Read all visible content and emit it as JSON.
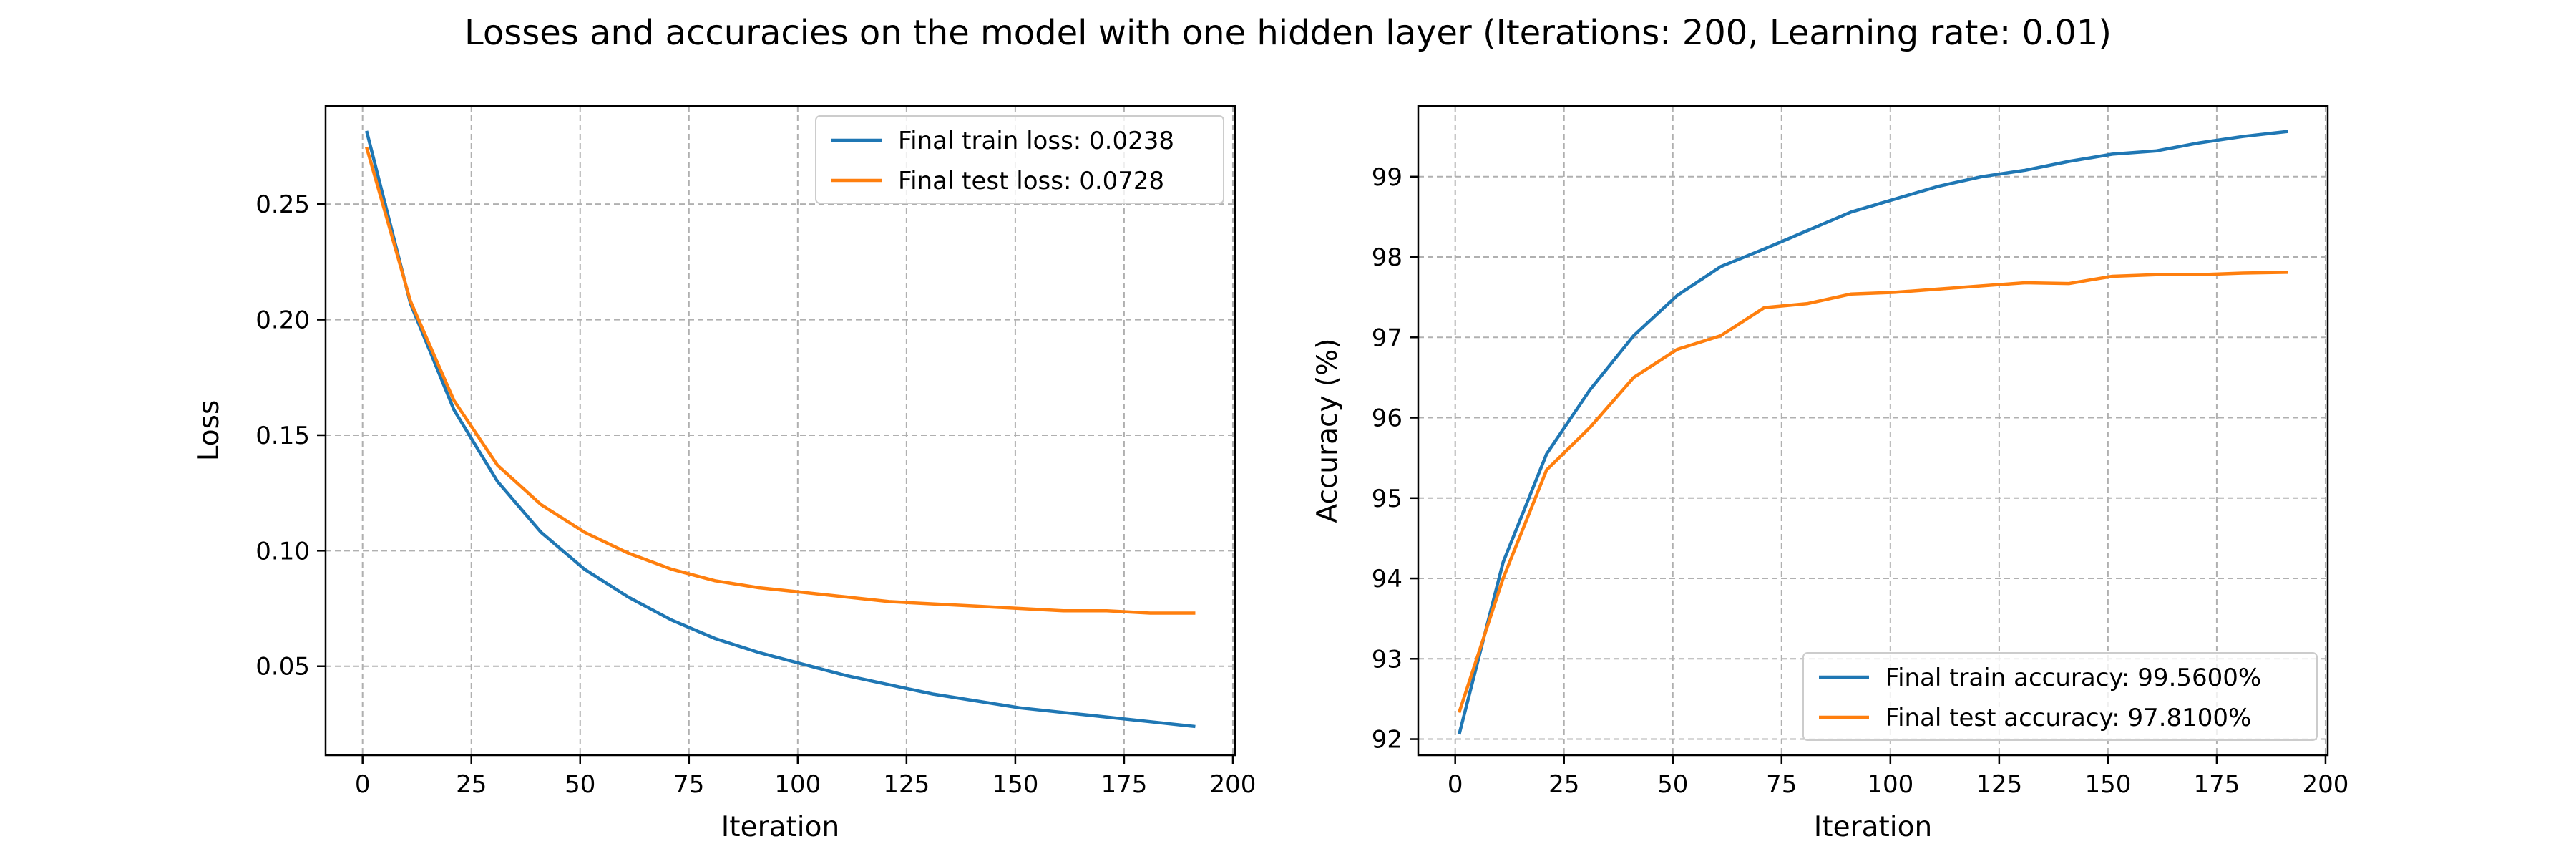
{
  "figure_title": "Losses and accuracies on the model with one hidden layer (Iterations: 200, Learning rate: 0.01)",
  "colors": {
    "train": "#1f77b4",
    "test": "#ff7f0e",
    "grid": "#b0b0b0"
  },
  "chart_data": [
    {
      "type": "line",
      "xlabel": "Iteration",
      "ylabel": "Loss",
      "xlim": [
        -8.5,
        200.5
      ],
      "ylim": [
        0.0115,
        0.2925
      ],
      "xticks": [
        0,
        25,
        50,
        75,
        100,
        125,
        150,
        175,
        200
      ],
      "yticks": [
        0.05,
        0.1,
        0.15,
        0.2,
        0.25
      ],
      "ytick_labels": [
        "0.05",
        "0.10",
        "0.15",
        "0.20",
        "0.25"
      ],
      "grid": true,
      "legend_position": "upper right",
      "x": [
        1,
        11,
        21,
        31,
        41,
        51,
        61,
        71,
        81,
        91,
        101,
        111,
        121,
        131,
        141,
        151,
        161,
        171,
        181,
        191
      ],
      "series": [
        {
          "name": "Final train loss: 0.0238",
          "color_key": "train",
          "values": [
            0.281,
            0.207,
            0.161,
            0.13,
            0.108,
            0.092,
            0.08,
            0.07,
            0.062,
            0.056,
            0.051,
            0.046,
            0.042,
            0.038,
            0.035,
            0.032,
            0.03,
            0.028,
            0.026,
            0.024
          ]
        },
        {
          "name": "Final test loss: 0.0728",
          "color_key": "test",
          "values": [
            0.274,
            0.208,
            0.165,
            0.137,
            0.12,
            0.108,
            0.099,
            0.092,
            0.087,
            0.084,
            0.082,
            0.08,
            0.078,
            0.077,
            0.076,
            0.075,
            0.074,
            0.074,
            0.073,
            0.073
          ]
        }
      ]
    },
    {
      "type": "line",
      "xlabel": "Iteration",
      "ylabel": "Accuracy (%)",
      "xlim": [
        -8.5,
        200.5
      ],
      "ylim": [
        91.8,
        99.88
      ],
      "xticks": [
        0,
        25,
        50,
        75,
        100,
        125,
        150,
        175,
        200
      ],
      "yticks": [
        92,
        93,
        94,
        95,
        96,
        97,
        98,
        99
      ],
      "ytick_labels": [
        "92",
        "93",
        "94",
        "95",
        "96",
        "97",
        "98",
        "99"
      ],
      "grid": true,
      "legend_position": "lower right",
      "x": [
        1,
        11,
        21,
        31,
        41,
        51,
        61,
        71,
        81,
        91,
        101,
        111,
        121,
        131,
        141,
        151,
        161,
        171,
        181,
        191
      ],
      "series": [
        {
          "name": "Final train accuracy: 99.5600%",
          "color_key": "train",
          "values": [
            92.08,
            94.2,
            95.55,
            96.35,
            97.02,
            97.52,
            97.88,
            98.1,
            98.33,
            98.56,
            98.72,
            98.88,
            99.0,
            99.08,
            99.19,
            99.28,
            99.32,
            99.42,
            99.5,
            99.56
          ]
        },
        {
          "name": "Final test accuracy: 97.8100%",
          "color_key": "test",
          "values": [
            92.35,
            94.0,
            95.35,
            95.88,
            96.5,
            96.85,
            97.02,
            97.37,
            97.42,
            97.54,
            97.56,
            97.6,
            97.64,
            97.68,
            97.67,
            97.76,
            97.78,
            97.78,
            97.8,
            97.81
          ]
        }
      ]
    }
  ]
}
